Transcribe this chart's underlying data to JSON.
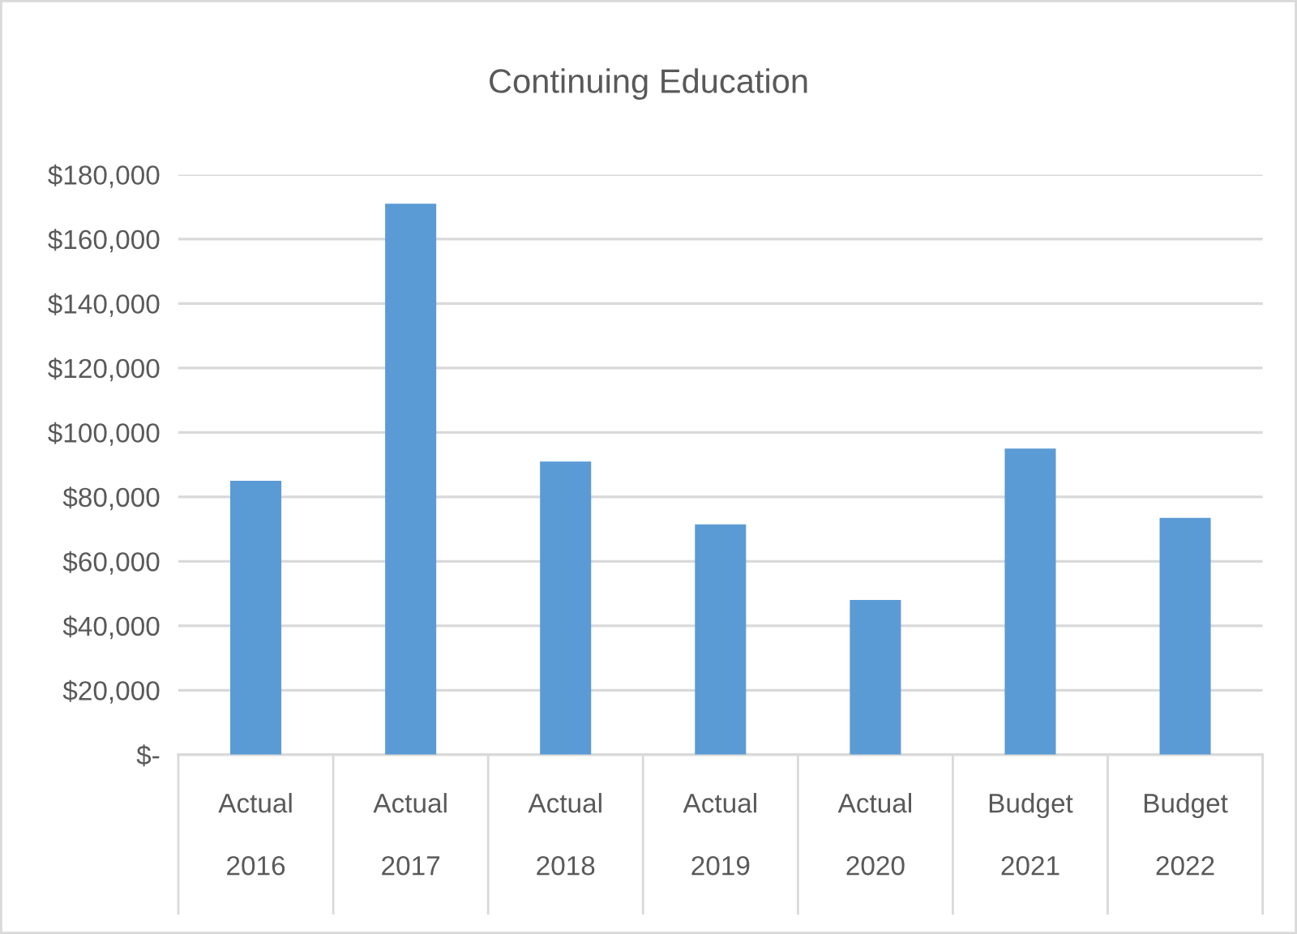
{
  "chart_data": {
    "type": "bar",
    "title": "Continuing Education",
    "categories": [
      "Actual\n2016",
      "Actual\n2017",
      "Actual\n2018",
      "Actual\n2019",
      "Actual\n2020",
      "Budget\n2021",
      "Budget\n2022"
    ],
    "values": [
      85000,
      171000,
      91000,
      71500,
      48000,
      95000,
      73500
    ],
    "color": "#5b9bd5",
    "ylim": [
      0,
      180000
    ],
    "yticks": [
      {
        "value": 0,
        "label": "$-"
      },
      {
        "value": 20000,
        "label": "$20,000"
      },
      {
        "value": 40000,
        "label": "$40,000"
      },
      {
        "value": 60000,
        "label": "$60,000"
      },
      {
        "value": 80000,
        "label": "$80,000"
      },
      {
        "value": 100000,
        "label": "$100,000"
      },
      {
        "value": 120000,
        "label": "$120,000"
      },
      {
        "value": 140000,
        "label": "$140,000"
      },
      {
        "value": 160000,
        "label": "$160,000"
      },
      {
        "value": 180000,
        "label": "$180,000"
      }
    ],
    "grid": "y"
  }
}
